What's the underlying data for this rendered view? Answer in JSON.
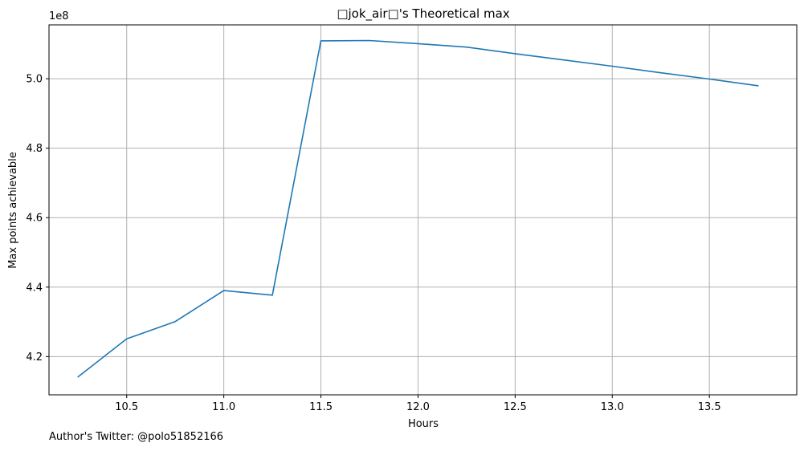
{
  "chart_data": {
    "type": "line",
    "title": "□jok_air□'s Theoretical max",
    "xlabel": "Hours",
    "ylabel": "Max points achievable",
    "y_offset_label": "1e8",
    "y_scale_factor": 100000000,
    "xlim": [
      10.1,
      13.95
    ],
    "ylim": [
      409000000,
      515500000
    ],
    "x_ticks": [
      10.5,
      11.0,
      11.5,
      12.0,
      12.5,
      13.0,
      13.5
    ],
    "x_tick_labels": [
      "10.5",
      "11.0",
      "11.5",
      "12.0",
      "12.5",
      "13.0",
      "13.5"
    ],
    "y_ticks": [
      420000000,
      440000000,
      460000000,
      480000000,
      500000000
    ],
    "y_tick_labels": [
      "4.2",
      "4.4",
      "4.6",
      "4.8",
      "5.0"
    ],
    "grid": true,
    "series": [
      {
        "color": "#1f77b4",
        "x": [
          10.25,
          10.5,
          10.75,
          11.0,
          11.25,
          11.5,
          11.75,
          12.0,
          12.25,
          12.5,
          12.75,
          13.0,
          13.25,
          13.5,
          13.75
        ],
        "y": [
          414200000,
          425100000,
          430100000,
          439000000,
          437700000,
          510900000,
          511000000,
          510100000,
          509100000,
          507200000,
          505400000,
          503600000,
          501700000,
          499900000,
          498000000
        ]
      }
    ]
  },
  "footnote": "Author's Twitter: @polo51852166"
}
